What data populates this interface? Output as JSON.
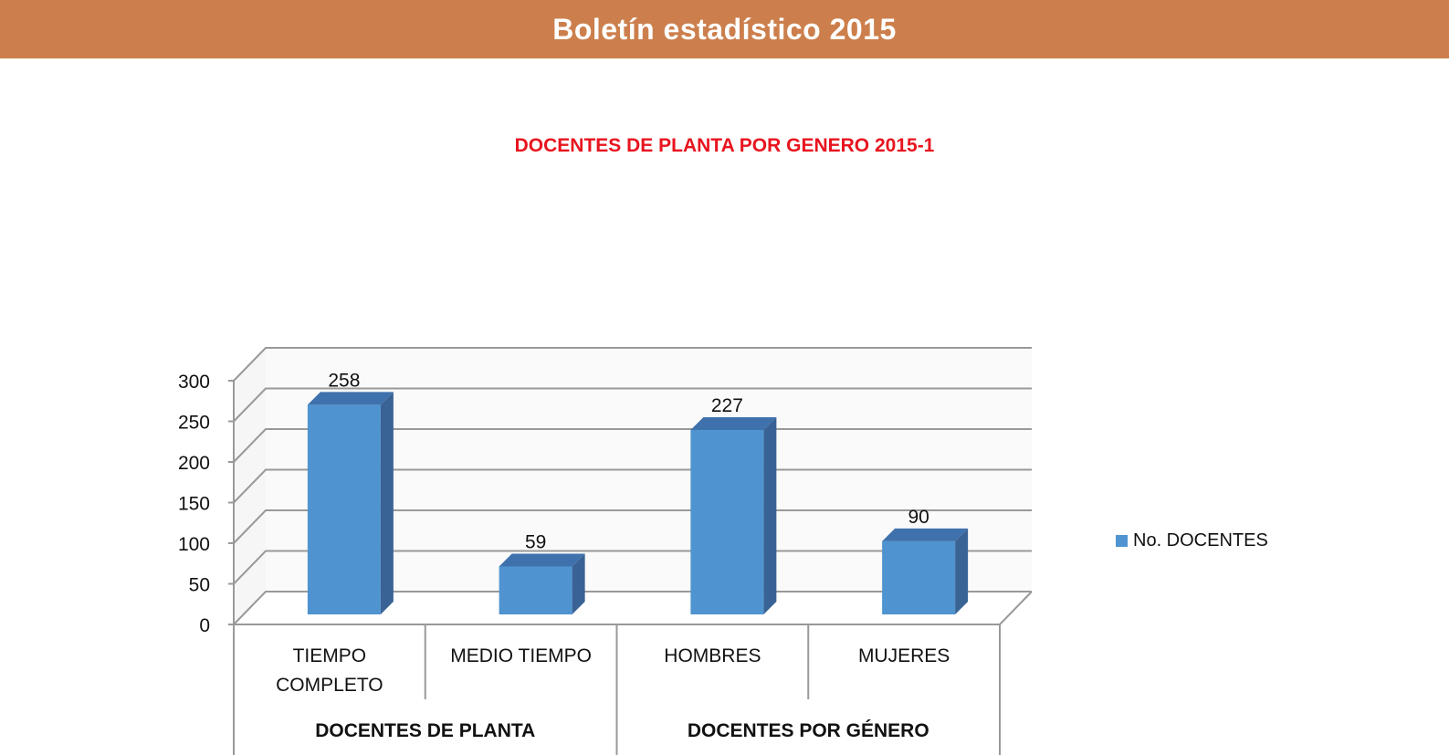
{
  "header": {
    "title": "Boletín estadístico 2015"
  },
  "chart_data": {
    "type": "bar",
    "title": "DOCENTES DE PLANTA POR GENERO 2015-1",
    "categories": [
      "TIEMPO COMPLETO",
      "MEDIO TIEMPO",
      "HOMBRES",
      "MUJERES"
    ],
    "category_lines": [
      [
        "TIEMPO",
        "COMPLETO"
      ],
      [
        "MEDIO TIEMPO"
      ],
      [
        "HOMBRES"
      ],
      [
        "MUJERES"
      ]
    ],
    "groups": [
      {
        "label": "DOCENTES DE PLANTA",
        "span": 2
      },
      {
        "label": "DOCENTES POR GÉNERO",
        "span": 2
      }
    ],
    "series": [
      {
        "name": "No. DOCENTES",
        "values": [
          258,
          59,
          227,
          90
        ],
        "color": "#4F94D0"
      }
    ],
    "ylim": [
      0,
      300
    ],
    "yticks": [
      0,
      50,
      100,
      150,
      200,
      250,
      300
    ],
    "grid": true,
    "legend": "right",
    "xlabel": "",
    "ylabel": ""
  }
}
